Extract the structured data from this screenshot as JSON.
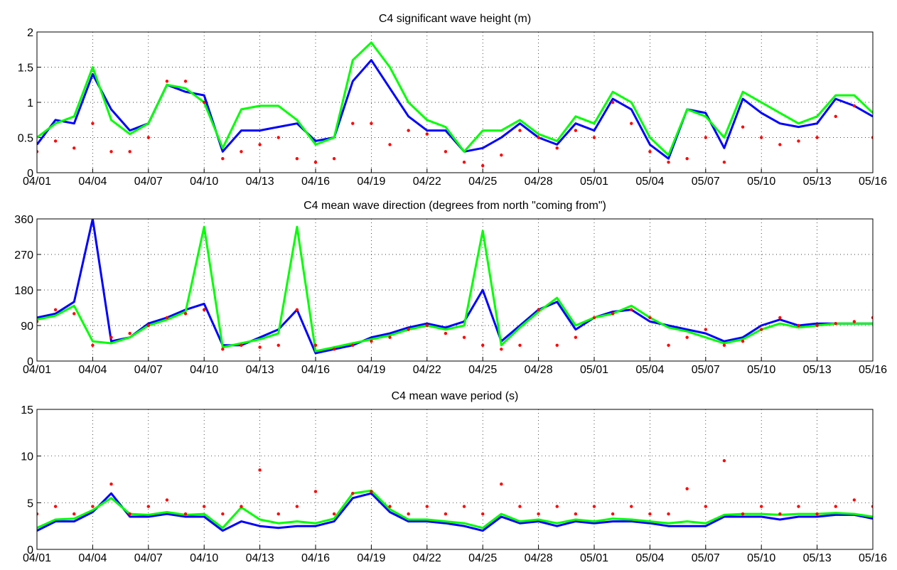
{
  "chart_data": [
    {
      "type": "line",
      "title": "C4 significant wave height (m)",
      "x": [
        0,
        1,
        2,
        3,
        4,
        5,
        6,
        7,
        8,
        9,
        10,
        11,
        12,
        13,
        14,
        15,
        16,
        17,
        18,
        19,
        20,
        21,
        22,
        23,
        24,
        25,
        26,
        27,
        28,
        29,
        30,
        31,
        32,
        33,
        34,
        35,
        36,
        37,
        38,
        39,
        40,
        41,
        42,
        43,
        44,
        45
      ],
      "xlim": [
        0,
        45
      ],
      "xticks": [
        {
          "value": 0,
          "label": "04/01"
        },
        {
          "value": 3,
          "label": "04/04"
        },
        {
          "value": 6,
          "label": "04/07"
        },
        {
          "value": 9,
          "label": "04/10"
        },
        {
          "value": 12,
          "label": "04/13"
        },
        {
          "value": 15,
          "label": "04/16"
        },
        {
          "value": 18,
          "label": "04/19"
        },
        {
          "value": 21,
          "label": "04/22"
        },
        {
          "value": 24,
          "label": "04/25"
        },
        {
          "value": 27,
          "label": "04/28"
        },
        {
          "value": 30,
          "label": "05/01"
        },
        {
          "value": 33,
          "label": "05/04"
        },
        {
          "value": 36,
          "label": "05/07"
        },
        {
          "value": 39,
          "label": "05/10"
        },
        {
          "value": 42,
          "label": "05/13"
        },
        {
          "value": 45,
          "label": "05/16"
        }
      ],
      "ylim": [
        0,
        2
      ],
      "yticks": [
        0,
        0.5,
        1,
        1.5,
        2
      ],
      "grid": true,
      "series": [
        {
          "color": "#0000ff",
          "mode": "line",
          "values": [
            0.4,
            0.75,
            0.7,
            1.4,
            0.9,
            0.6,
            0.7,
            1.25,
            1.15,
            1.1,
            0.3,
            0.6,
            0.6,
            0.65,
            0.7,
            0.45,
            0.5,
            1.3,
            1.6,
            1.2,
            0.8,
            0.6,
            0.6,
            0.3,
            0.35,
            0.5,
            0.7,
            0.5,
            0.4,
            0.7,
            0.6,
            1.05,
            0.9,
            0.4,
            0.2,
            0.9,
            0.85,
            0.35,
            1.05,
            0.85,
            0.7,
            0.65,
            0.7,
            1.05,
            0.95,
            0.8
          ]
        },
        {
          "color": "#00ff00",
          "mode": "line",
          "values": [
            0.5,
            0.7,
            0.8,
            1.5,
            0.75,
            0.55,
            0.7,
            1.25,
            1.2,
            1.0,
            0.35,
            0.9,
            0.95,
            0.95,
            0.75,
            0.4,
            0.5,
            1.6,
            1.85,
            1.5,
            1.0,
            0.75,
            0.65,
            0.3,
            0.6,
            0.6,
            0.75,
            0.55,
            0.45,
            0.8,
            0.7,
            1.15,
            1.0,
            0.5,
            0.25,
            0.9,
            0.8,
            0.5,
            1.15,
            1.0,
            0.85,
            0.7,
            0.8,
            1.1,
            1.1,
            0.85
          ]
        },
        {
          "color": "#ff0000",
          "mode": "markers",
          "values": [
            0.3,
            0.45,
            0.35,
            0.7,
            0.3,
            0.3,
            0.5,
            1.3,
            1.3,
            1.0,
            0.2,
            0.3,
            0.4,
            0.5,
            0.2,
            0.15,
            0.2,
            0.7,
            0.7,
            0.4,
            0.6,
            0.55,
            0.3,
            0.15,
            0.1,
            0.25,
            0.6,
            0.5,
            0.35,
            0.6,
            0.5,
            1.0,
            0.7,
            0.3,
            0.15,
            0.2,
            0.5,
            0.15,
            0.65,
            0.5,
            0.4,
            0.45,
            0.5,
            0.8,
            0.95,
            0.5
          ]
        }
      ]
    },
    {
      "type": "line",
      "title": "C4 mean wave direction (degrees from north \"coming from\")",
      "x": [
        0,
        1,
        2,
        3,
        4,
        5,
        6,
        7,
        8,
        9,
        10,
        11,
        12,
        13,
        14,
        15,
        16,
        17,
        18,
        19,
        20,
        21,
        22,
        23,
        24,
        25,
        26,
        27,
        28,
        29,
        30,
        31,
        32,
        33,
        34,
        35,
        36,
        37,
        38,
        39,
        40,
        41,
        42,
        43,
        44,
        45
      ],
      "xlim": [
        0,
        45
      ],
      "xticks": [
        {
          "value": 0,
          "label": "04/01"
        },
        {
          "value": 3,
          "label": "04/04"
        },
        {
          "value": 6,
          "label": "04/07"
        },
        {
          "value": 9,
          "label": "04/10"
        },
        {
          "value": 12,
          "label": "04/13"
        },
        {
          "value": 15,
          "label": "04/16"
        },
        {
          "value": 18,
          "label": "04/19"
        },
        {
          "value": 21,
          "label": "04/22"
        },
        {
          "value": 24,
          "label": "04/25"
        },
        {
          "value": 27,
          "label": "04/28"
        },
        {
          "value": 30,
          "label": "05/01"
        },
        {
          "value": 33,
          "label": "05/04"
        },
        {
          "value": 36,
          "label": "05/07"
        },
        {
          "value": 39,
          "label": "05/10"
        },
        {
          "value": 42,
          "label": "05/13"
        },
        {
          "value": 45,
          "label": "05/16"
        }
      ],
      "ylim": [
        0,
        360
      ],
      "yticks": [
        0,
        90,
        180,
        270,
        360
      ],
      "grid": true,
      "series": [
        {
          "color": "#0000ff",
          "mode": "line",
          "values": [
            110,
            120,
            150,
            360,
            50,
            60,
            95,
            110,
            130,
            145,
            40,
            40,
            60,
            80,
            130,
            20,
            30,
            40,
            60,
            70,
            85,
            95,
            85,
            100,
            180,
            50,
            90,
            130,
            150,
            80,
            110,
            125,
            130,
            100,
            90,
            80,
            70,
            50,
            60,
            90,
            105,
            90,
            95,
            95,
            95,
            95
          ]
        },
        {
          "color": "#00ff00",
          "mode": "line",
          "values": [
            105,
            115,
            140,
            50,
            45,
            60,
            90,
            105,
            125,
            340,
            35,
            45,
            55,
            70,
            340,
            25,
            35,
            45,
            55,
            65,
            80,
            90,
            80,
            90,
            330,
            40,
            85,
            125,
            160,
            90,
            110,
            120,
            140,
            110,
            85,
            75,
            60,
            45,
            55,
            80,
            95,
            85,
            90,
            95,
            95,
            95
          ]
        },
        {
          "color": "#ff0000",
          "mode": "markers",
          "values": [
            100,
            130,
            120,
            40,
            60,
            70,
            90,
            110,
            120,
            130,
            30,
            40,
            35,
            40,
            130,
            40,
            30,
            40,
            50,
            60,
            80,
            90,
            70,
            60,
            40,
            30,
            40,
            130,
            40,
            60,
            110,
            120,
            130,
            110,
            40,
            60,
            80,
            40,
            50,
            80,
            110,
            90,
            90,
            95,
            100,
            110
          ]
        }
      ]
    },
    {
      "type": "line",
      "title": "C4 mean wave period (s)",
      "x": [
        0,
        1,
        2,
        3,
        4,
        5,
        6,
        7,
        8,
        9,
        10,
        11,
        12,
        13,
        14,
        15,
        16,
        17,
        18,
        19,
        20,
        21,
        22,
        23,
        24,
        25,
        26,
        27,
        28,
        29,
        30,
        31,
        32,
        33,
        34,
        35,
        36,
        37,
        38,
        39,
        40,
        41,
        42,
        43,
        44,
        45
      ],
      "xlim": [
        0,
        45
      ],
      "xticks": [
        {
          "value": 0,
          "label": "04/01"
        },
        {
          "value": 3,
          "label": "04/04"
        },
        {
          "value": 6,
          "label": "04/07"
        },
        {
          "value": 9,
          "label": "04/10"
        },
        {
          "value": 12,
          "label": "04/13"
        },
        {
          "value": 15,
          "label": "04/16"
        },
        {
          "value": 18,
          "label": "04/19"
        },
        {
          "value": 21,
          "label": "04/22"
        },
        {
          "value": 24,
          "label": "04/25"
        },
        {
          "value": 27,
          "label": "04/28"
        },
        {
          "value": 30,
          "label": "05/01"
        },
        {
          "value": 33,
          "label": "05/04"
        },
        {
          "value": 36,
          "label": "05/07"
        },
        {
          "value": 39,
          "label": "05/10"
        },
        {
          "value": 42,
          "label": "05/13"
        },
        {
          "value": 45,
          "label": "05/16"
        }
      ],
      "ylim": [
        0,
        15
      ],
      "yticks": [
        0,
        5,
        10,
        15
      ],
      "grid": true,
      "series": [
        {
          "color": "#0000ff",
          "mode": "line",
          "values": [
            2,
            3,
            3,
            4,
            6,
            3.5,
            3.5,
            3.8,
            3.5,
            3.5,
            2,
            3,
            2.5,
            2.3,
            2.5,
            2.5,
            3,
            5.5,
            6,
            4,
            3,
            3,
            2.8,
            2.5,
            2,
            3.5,
            2.8,
            3,
            2.5,
            3,
            2.8,
            3,
            3,
            2.8,
            2.5,
            2.5,
            2.5,
            3.5,
            3.5,
            3.5,
            3.2,
            3.5,
            3.5,
            3.7,
            3.7,
            3.3
          ]
        },
        {
          "color": "#00ff00",
          "mode": "line",
          "values": [
            2.3,
            3.2,
            3.3,
            4.2,
            5.5,
            3.8,
            3.7,
            4,
            3.7,
            3.8,
            2.3,
            4.5,
            3.2,
            2.8,
            3,
            2.8,
            3.3,
            6,
            6.3,
            4.3,
            3.2,
            3.2,
            3,
            2.8,
            2.3,
            3.8,
            3,
            3.2,
            2.8,
            3.2,
            3,
            3.3,
            3.2,
            3,
            2.8,
            3,
            2.8,
            3.7,
            3.8,
            3.8,
            3.7,
            3.8,
            3.8,
            3.9,
            3.8,
            3.5
          ]
        },
        {
          "color": "#ff0000",
          "mode": "markers",
          "values": [
            3.8,
            4.6,
            3.8,
            4.6,
            7,
            3.8,
            4.6,
            5.3,
            3.8,
            4.6,
            3.8,
            4.6,
            8.5,
            3.8,
            4.6,
            6.2,
            3.8,
            6,
            6.2,
            4.6,
            3.8,
            4.6,
            3.8,
            4.6,
            3.8,
            7,
            4.6,
            3.8,
            4.6,
            3.8,
            4.6,
            3.8,
            4.6,
            3.8,
            3.8,
            6.5,
            4.6,
            9.5,
            3.8,
            4.6,
            3.8,
            4.6,
            3.8,
            4.6,
            5.3,
            4.6
          ]
        }
      ]
    }
  ]
}
